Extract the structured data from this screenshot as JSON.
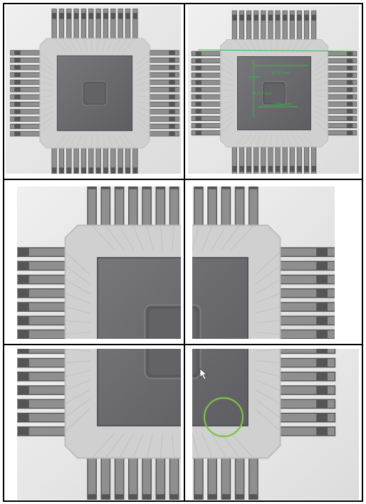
{
  "figure": {
    "panels": [
      {
        "id": "overview",
        "content": "QFN lead frame full view"
      },
      {
        "id": "measured",
        "content": "lead frame with die pad measurements"
      },
      {
        "id": "zoom-top-left",
        "content": "magnified top-left corner"
      },
      {
        "id": "zoom-top-right",
        "content": "magnified top-right corner"
      },
      {
        "id": "zoom-bottom-left",
        "content": "magnified bottom-left corner"
      },
      {
        "id": "zoom-bottom-right",
        "content": "magnified bottom-right corner with circled defect"
      }
    ],
    "measurements": {
      "width_label": "6.717 mm",
      "height_label": "6.717 mm",
      "inner_label": "2.838 mm"
    },
    "colors": {
      "background": "#e6e6e6",
      "frame": "#d0d0d0",
      "lead": "#8f8f8f",
      "lead_edge": "#555555",
      "pad": "#6c6c70",
      "border": "#000000",
      "annotation": "#2fbf3a",
      "highlight_circle": "#7cc242"
    }
  }
}
